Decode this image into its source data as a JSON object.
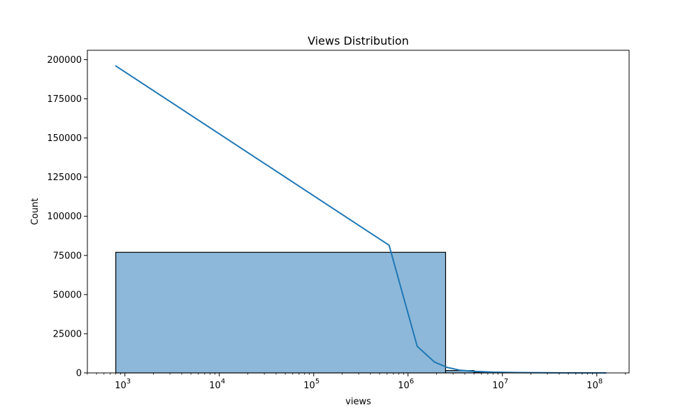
{
  "chart_data": {
    "type": "bar",
    "title": "Views Distribution",
    "xlabel": "views",
    "ylabel": "Count",
    "x_scale": "log",
    "xlim": [
      400,
      220000000
    ],
    "ylim": [
      0,
      206000
    ],
    "grid": false,
    "x_ticks": [
      {
        "value": 1000,
        "base": "10",
        "exp": "3"
      },
      {
        "value": 10000,
        "base": "10",
        "exp": "4"
      },
      {
        "value": 100000,
        "base": "10",
        "exp": "5"
      },
      {
        "value": 1000000,
        "base": "10",
        "exp": "6"
      },
      {
        "value": 10000000,
        "base": "10",
        "exp": "7"
      },
      {
        "value": 100000000,
        "base": "10",
        "exp": "8"
      }
    ],
    "y_ticks": [
      {
        "value": 0,
        "label": "0"
      },
      {
        "value": 25000,
        "label": "25000"
      },
      {
        "value": 50000,
        "label": "50000"
      },
      {
        "value": 75000,
        "label": "75000"
      },
      {
        "value": 100000,
        "label": "100000"
      },
      {
        "value": 125000,
        "label": "125000"
      },
      {
        "value": 150000,
        "label": "150000"
      },
      {
        "value": 175000,
        "label": "175000"
      },
      {
        "value": 200000,
        "label": "200000"
      }
    ],
    "bins": [
      {
        "x0": 800,
        "x1": 2500000,
        "count": 77000
      },
      {
        "x0": 2500000,
        "x1": 5000000,
        "count": 1500
      },
      {
        "x0": 5000000,
        "x1": 10000000,
        "count": 300
      },
      {
        "x0": 10000000,
        "x1": 20000000,
        "count": 100
      },
      {
        "x0": 20000000,
        "x1": 125000000,
        "count": 20
      }
    ],
    "kde_line": {
      "x": [
        800,
        630000,
        1250000,
        1900000,
        2600000,
        3500000,
        5000000,
        8000000,
        15000000,
        40000000,
        125000000
      ],
      "y": [
        196000,
        81500,
        17000,
        7000,
        3500,
        1800,
        1000,
        500,
        200,
        60,
        10
      ]
    },
    "colors": {
      "bar_fill": "#8db8d9",
      "bar_edge": "#000000",
      "line": "#1f77b4"
    }
  }
}
